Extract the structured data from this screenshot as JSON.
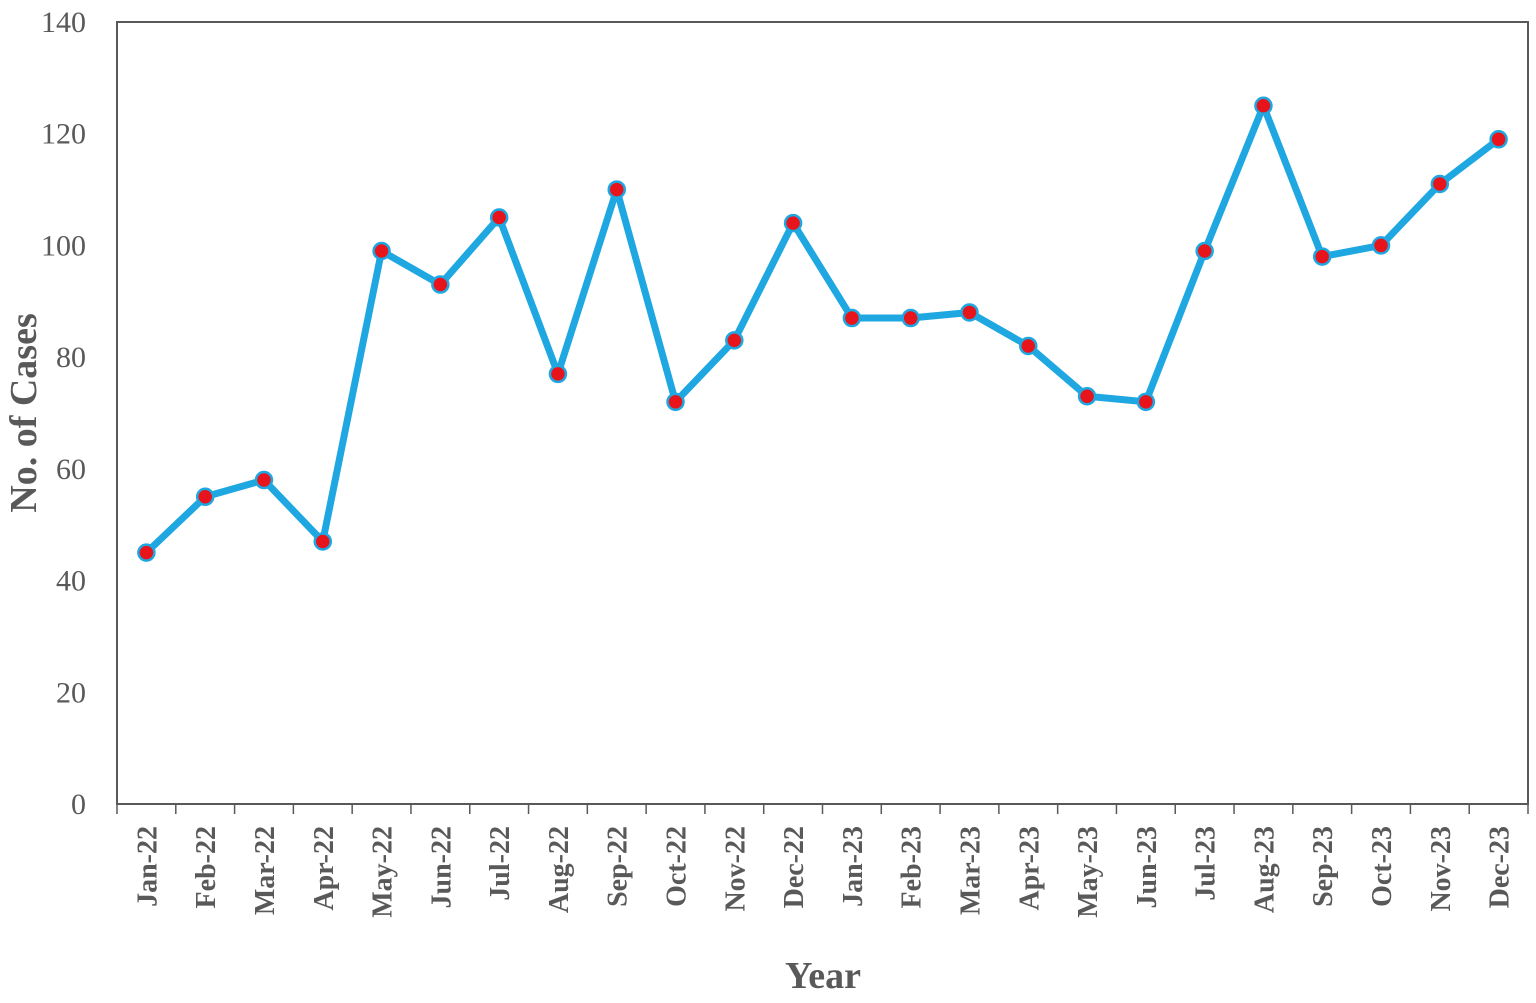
{
  "chart_data": {
    "type": "line",
    "title": "",
    "xlabel": "Year",
    "ylabel": "No. of Cases",
    "ylim": [
      0,
      140
    ],
    "yticks": [
      0,
      20,
      40,
      60,
      80,
      100,
      120,
      140
    ],
    "grid": false,
    "legend": "none",
    "categories": [
      "Jan-22",
      "Feb-22",
      "Mar-22",
      "Apr-22",
      "May-22",
      "Jun-22",
      "Jul-22",
      "Aug-22",
      "Sep-22",
      "Oct-22",
      "Nov-22",
      "Dec-22",
      "Jan-23",
      "Feb-23",
      "Mar-23",
      "Apr-23",
      "May-23",
      "Jun-23",
      "Jul-23",
      "Aug-23",
      "Sep-23",
      "Oct-23",
      "Nov-23",
      "Dec-23"
    ],
    "series": [
      {
        "values": [
          45,
          55,
          58,
          47,
          99,
          93,
          105,
          77,
          110,
          72,
          83,
          104,
          87,
          87,
          88,
          82,
          73,
          72,
          99,
          125,
          98,
          100,
          111,
          119
        ],
        "line_color": "#1ea7e1",
        "marker_color": "#e8141b"
      }
    ]
  }
}
